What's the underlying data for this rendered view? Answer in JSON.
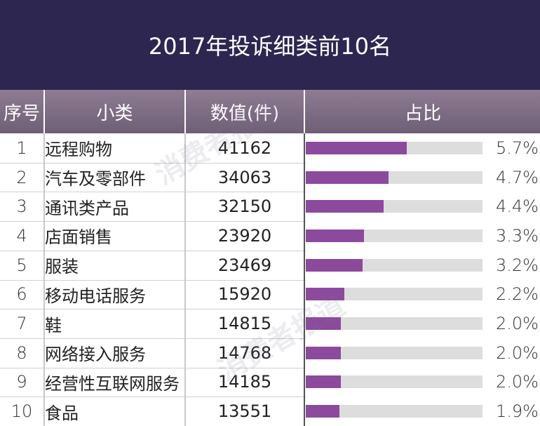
{
  "chart_data": {
    "type": "table",
    "title": "2017年投诉细类前10名",
    "columns": [
      "序号",
      "小类",
      "数值(件)",
      "占比"
    ],
    "rows": [
      {
        "rank": "1",
        "name": "远程购物",
        "value": "41162",
        "pct": "5.7%",
        "share": 5.7
      },
      {
        "rank": "2",
        "name": "汽车及零部件",
        "value": "34063",
        "pct": "4.7%",
        "share": 4.7
      },
      {
        "rank": "3",
        "name": "通讯类产品",
        "value": "32150",
        "pct": "4.4%",
        "share": 4.4
      },
      {
        "rank": "4",
        "name": "店面销售",
        "value": "23920",
        "pct": "3.3%",
        "share": 3.3
      },
      {
        "rank": "5",
        "name": "服装",
        "value": "23469",
        "pct": "3.2%",
        "share": 3.2
      },
      {
        "rank": "6",
        "name": "移动电话服务",
        "value": "15920",
        "pct": "2.2%",
        "share": 2.2
      },
      {
        "rank": "7",
        "name": "鞋",
        "value": "14815",
        "pct": "2.0%",
        "share": 2.0
      },
      {
        "rank": "8",
        "name": "网络接入服务",
        "value": "14768",
        "pct": "2.0%",
        "share": 2.0
      },
      {
        "rank": "9",
        "name": "经营性互联网服务",
        "value": "14185",
        "pct": "2.0%",
        "share": 2.0
      },
      {
        "rank": "10",
        "name": "食品",
        "value": "13551",
        "pct": "1.9%",
        "share": 1.9
      }
    ],
    "bar_max": 10
  },
  "watermark": "消费者报道",
  "colors": {
    "title_bg": "#2d2650",
    "header_bg": "#7d6c84",
    "bar": "#8b4a9c",
    "track": "#dddddd"
  }
}
